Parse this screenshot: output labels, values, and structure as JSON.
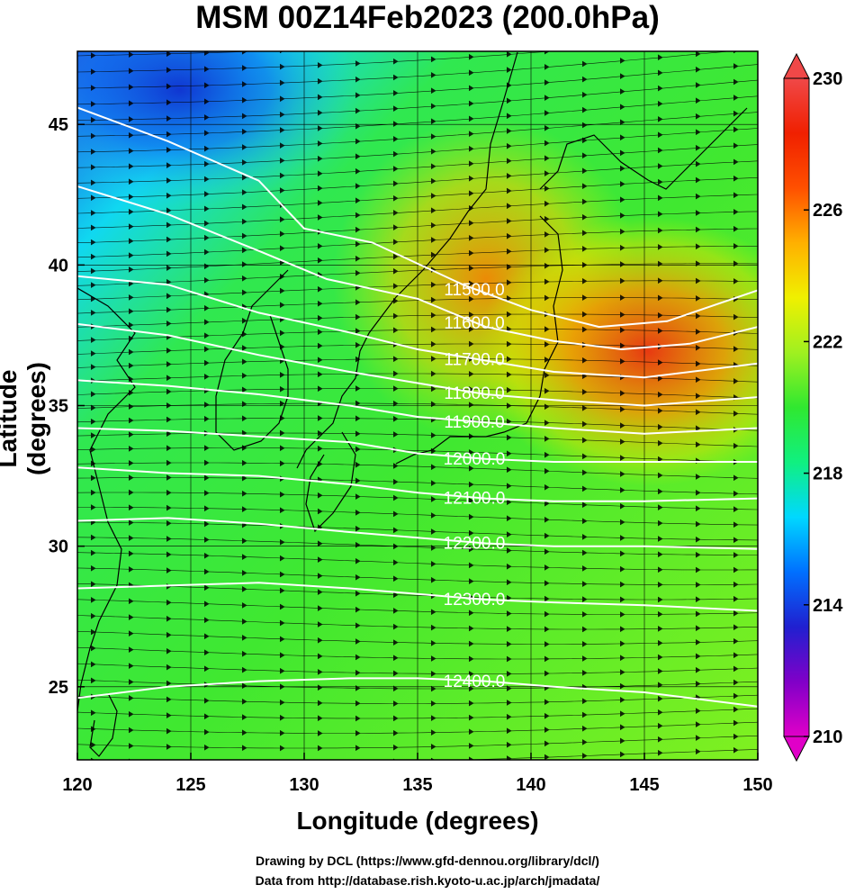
{
  "title": "MSM 00Z14Feb2023 (200.0hPa)",
  "xlabel": "Longitude (degrees)",
  "ylabel": "Latitude  (degrees)",
  "credits": [
    "Drawing by DCL (https://www.gfd-dennou.org/library/dcl/)",
    "Data from http://database.rish.kyoto-u.ac.jp/arch/jmadata/"
  ],
  "map": {
    "xlim": [
      120,
      150
    ],
    "ylim": [
      22.4,
      47.6
    ],
    "xticks": [
      120,
      125,
      130,
      135,
      140,
      145,
      150
    ],
    "yticks": [
      25,
      30,
      35,
      40,
      45
    ],
    "xtick_labels": [
      "120",
      "125",
      "130",
      "135",
      "140",
      "145",
      "150"
    ],
    "ytick_labels": [
      "25",
      "30",
      "35",
      "40",
      "45"
    ],
    "colorbar": {
      "min": 210,
      "max": 230,
      "ticks": [
        "230",
        "226",
        "222",
        "218",
        "214",
        "210"
      ],
      "colors": [
        "#e000c8",
        "#8000c8",
        "#2020d0",
        "#0070ff",
        "#00d8ff",
        "#10f080",
        "#30e830",
        "#a0f020",
        "#f0f000",
        "#ffb000",
        "#ff5000",
        "#f02000",
        "#f04848"
      ]
    },
    "contours": [
      {
        "label": "11500.0",
        "points": [
          [
            120,
            45.6
          ],
          [
            124,
            44.4
          ],
          [
            128,
            43.0
          ],
          [
            130,
            41.3
          ],
          [
            133,
            40.8
          ],
          [
            137,
            39.3
          ],
          [
            140,
            38.4
          ],
          [
            143,
            37.8
          ],
          [
            146,
            38.0
          ],
          [
            150,
            39.1
          ]
        ]
      },
      {
        "label": "11600.0",
        "points": [
          [
            120,
            42.8
          ],
          [
            124,
            41.8
          ],
          [
            128,
            40.5
          ],
          [
            131,
            39.5
          ],
          [
            135,
            38.8
          ],
          [
            138,
            37.8
          ],
          [
            141,
            37.3
          ],
          [
            144,
            37.0
          ],
          [
            147,
            37.2
          ],
          [
            150,
            37.8
          ]
        ]
      },
      {
        "label": "11700.0",
        "points": [
          [
            120,
            39.6
          ],
          [
            124,
            39.3
          ],
          [
            128,
            38.3
          ],
          [
            132,
            37.6
          ],
          [
            135,
            37.0
          ],
          [
            138,
            36.6
          ],
          [
            141,
            36.2
          ],
          [
            145,
            36.0
          ],
          [
            150,
            36.5
          ]
        ]
      },
      {
        "label": "11800.0",
        "points": [
          [
            120,
            37.9
          ],
          [
            124,
            37.5
          ],
          [
            128,
            36.8
          ],
          [
            132,
            36.2
          ],
          [
            135,
            35.8
          ],
          [
            138,
            35.4
          ],
          [
            141,
            35.2
          ],
          [
            145,
            35.0
          ],
          [
            150,
            35.3
          ]
        ]
      },
      {
        "label": "11900.0",
        "points": [
          [
            120,
            35.9
          ],
          [
            124,
            35.7
          ],
          [
            128,
            35.4
          ],
          [
            132,
            35.0
          ],
          [
            135,
            34.6
          ],
          [
            138,
            34.4
          ],
          [
            141,
            34.2
          ],
          [
            145,
            34.0
          ],
          [
            150,
            34.2
          ]
        ]
      },
      {
        "label": "12000.0",
        "points": [
          [
            120,
            34.2
          ],
          [
            124,
            34.1
          ],
          [
            128,
            33.9
          ],
          [
            132,
            33.7
          ],
          [
            135,
            33.3
          ],
          [
            138,
            33.1
          ],
          [
            141,
            33.0
          ],
          [
            145,
            33.0
          ],
          [
            150,
            33.0
          ]
        ]
      },
      {
        "label": "12100.0",
        "points": [
          [
            120,
            32.8
          ],
          [
            124,
            32.6
          ],
          [
            128,
            32.5
          ],
          [
            132,
            32.2
          ],
          [
            135,
            31.9
          ],
          [
            138,
            31.7
          ],
          [
            141,
            31.6
          ],
          [
            145,
            31.6
          ],
          [
            150,
            31.7
          ]
        ]
      },
      {
        "label": "12200.0",
        "points": [
          [
            120,
            30.9
          ],
          [
            124,
            31.0
          ],
          [
            128,
            30.8
          ],
          [
            132,
            30.5
          ],
          [
            135,
            30.3
          ],
          [
            138,
            30.1
          ],
          [
            141,
            30.0
          ],
          [
            145,
            30.0
          ],
          [
            150,
            29.9
          ]
        ]
      },
      {
        "label": "12300.0",
        "points": [
          [
            120,
            28.5
          ],
          [
            124,
            28.6
          ],
          [
            128,
            28.7
          ],
          [
            132,
            28.5
          ],
          [
            135,
            28.3
          ],
          [
            138,
            28.1
          ],
          [
            141,
            28.0
          ],
          [
            145,
            27.9
          ],
          [
            150,
            27.7
          ]
        ]
      },
      {
        "label": "12400.0",
        "points": [
          [
            120,
            24.6
          ],
          [
            124,
            25.0
          ],
          [
            128,
            25.2
          ],
          [
            132,
            25.3
          ],
          [
            135,
            25.3
          ],
          [
            138,
            25.2
          ],
          [
            141,
            25.0
          ],
          [
            145,
            24.8
          ],
          [
            150,
            24.3
          ]
        ]
      }
    ]
  }
}
